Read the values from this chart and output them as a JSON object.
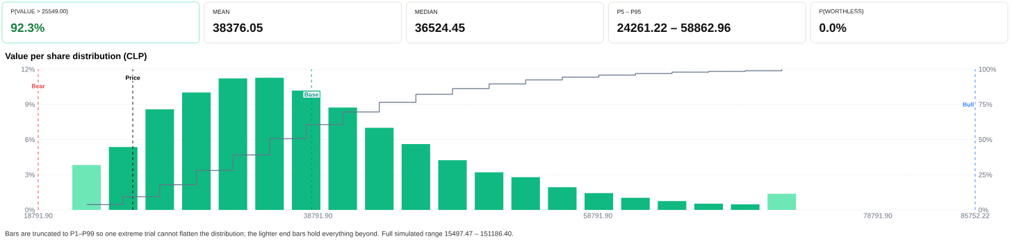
{
  "chart_data": [
    {
      "type": "other",
      "annotations": [
        "P(VALUE > 25549.00)",
        "92.3%",
        "MEAN",
        "38376.05",
        "MEDIAN",
        "36524.45",
        "P5 – P95",
        "24261.22 – 58862.96",
        "P(WORTHLESS)",
        "0.0%"
      ]
    },
    {
      "type": "histogram",
      "title": "Value per share distribution (CLP)",
      "bins": [
        20940,
        23555,
        26170,
        28785,
        31400,
        34015,
        36630,
        39245,
        41860,
        44475,
        47090,
        49705,
        52320,
        54935,
        57550,
        60165,
        62780,
        65395,
        68010,
        70625,
        73240
      ],
      "series": [
        {
          "type": "histogram",
          "values": [
            3.83,
            5.36,
            8.58,
            10.02,
            11.22,
            11.28,
            10.18,
            8.74,
            7.0,
            5.62,
            4.24,
            3.2,
            2.8,
            1.93,
            1.44,
            1.03,
            0.75,
            0.53,
            0.47,
            1.38
          ],
          "colors": [
            "#6ee7b7",
            "#10b981",
            "#10b981",
            "#10b981",
            "#10b981",
            "#10b981",
            "#10b981",
            "#10b981",
            "#10b981",
            "#10b981",
            "#10b981",
            "#10b981",
            "#10b981",
            "#10b981",
            "#10b981",
            "#10b981",
            "#10b981",
            "#10b981",
            "#10b981",
            "#6ee7b7"
          ]
        },
        {
          "type": "step",
          "axis": "y2",
          "color": "#64748b",
          "x": [
            22248,
            24863,
            27478,
            30093,
            32708,
            35323,
            37938,
            40553,
            43168,
            45783,
            48398,
            51013,
            53628,
            56243,
            58858,
            61473,
            64088,
            66703,
            69318,
            71933
          ],
          "values": [
            3.8,
            9.4,
            17.9,
            28.0,
            39.1,
            50.7,
            60.7,
            69.6,
            76.5,
            82.2,
            86.3,
            89.6,
            92.4,
            94.4,
            95.9,
            97.0,
            98.0,
            98.5,
            99.0,
            100
          ]
        }
      ],
      "xlim": [
        18791.9,
        85752.22
      ],
      "xticks": [
        {
          "value": 18791.9,
          "label": "18791.90"
        },
        {
          "value": 38791.9,
          "label": "38791.90"
        },
        {
          "value": 58791.9,
          "label": "58791.90"
        },
        {
          "value": 78791.9,
          "label": "78791.90"
        },
        {
          "value": 85752.22,
          "label": "85752.22"
        }
      ],
      "ylim": [
        0,
        12
      ],
      "yticks": [
        {
          "value": 0,
          "label": "0%"
        },
        {
          "value": 3,
          "label": "3%"
        },
        {
          "value": 6,
          "label": "6%"
        },
        {
          "value": 9,
          "label": "9%"
        },
        {
          "value": 12,
          "label": "12%"
        }
      ],
      "y2lim": [
        0,
        100
      ],
      "y2ticks": [
        {
          "value": 0,
          "label": "0%"
        },
        {
          "value": 25,
          "label": "25%"
        },
        {
          "value": 50,
          "label": "50%"
        },
        {
          "value": 75,
          "label": "75%"
        },
        {
          "value": 100,
          "label": "100%"
        }
      ],
      "grid": "y",
      "ref_lines": [
        {
          "axis": "x",
          "value": 18791.9,
          "label": "Bear",
          "color": "#ef4444",
          "line_style": "dashed"
        },
        {
          "axis": "x",
          "value": 25549,
          "label": "Price",
          "color": "#000000",
          "line_style": "dashed"
        },
        {
          "axis": "x",
          "value": 38320,
          "label": "Base",
          "color": "#0d9488",
          "line_style": "dashed"
        },
        {
          "axis": "x",
          "value": 85752.22,
          "label": "Bull",
          "color": "#3b82f6",
          "line_style": "dashed"
        }
      ],
      "annotations": [
        "Bars are truncated to P1–P99 so one extreme trial cannot flatten the distribution; the lighter end bars hold everything beyond. Full simulated range 15497.47 – 151186.40."
      ]
    }
  ]
}
